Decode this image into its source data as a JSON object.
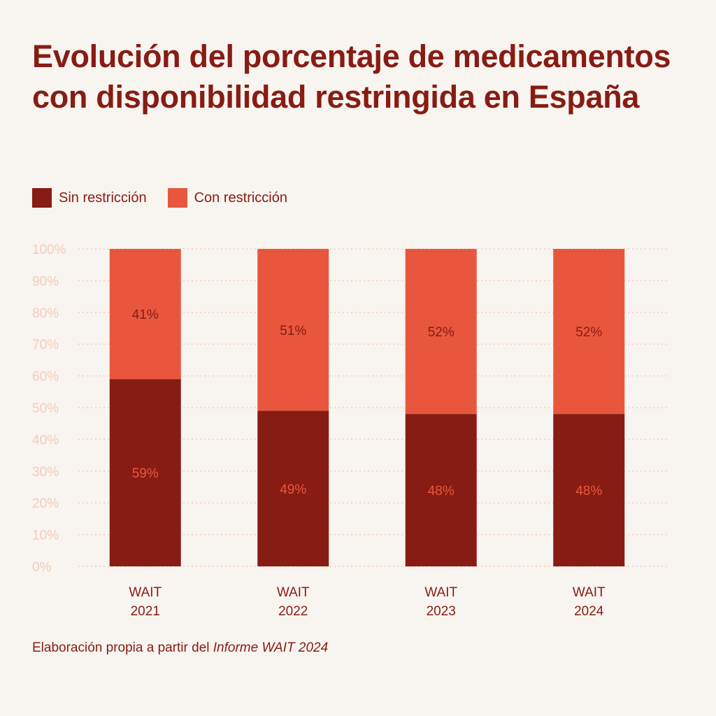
{
  "colors": {
    "background": "#f8f4ef",
    "dark": "#871c14",
    "light": "#e8573d",
    "grid": "#f4cbbb",
    "tick_text": "#f4cbbb"
  },
  "chart_data": {
    "type": "bar",
    "stacked": true,
    "title": "Evolución del porcentaje de medicamentos con disponibilidad restringida en España",
    "categories": [
      [
        "WAIT",
        "2021"
      ],
      [
        "WAIT",
        "2022"
      ],
      [
        "WAIT",
        "2023"
      ],
      [
        "WAIT",
        "2024"
      ]
    ],
    "series": [
      {
        "name": "Sin restricción",
        "values": [
          59,
          49,
          48,
          48
        ],
        "labels": [
          "59%",
          "49%",
          "48%",
          "48%"
        ],
        "color": "#871c14",
        "label_color": "#e8573d"
      },
      {
        "name": "Con restricción",
        "values": [
          41,
          51,
          52,
          52
        ],
        "labels": [
          "41%",
          "51%",
          "52%",
          "52%"
        ],
        "color": "#e8573d",
        "label_color": "#871c14"
      }
    ],
    "ylim": [
      0,
      100
    ],
    "yticks": [
      "0%",
      "10%",
      "20%",
      "30%",
      "40%",
      "50%",
      "60%",
      "70%",
      "80%",
      "90%",
      "100%"
    ],
    "grid": true,
    "legend_position": "top-left"
  },
  "source": {
    "prefix": "Elaboración propia a partir del ",
    "emphasis": "Informe WAIT 2024"
  }
}
